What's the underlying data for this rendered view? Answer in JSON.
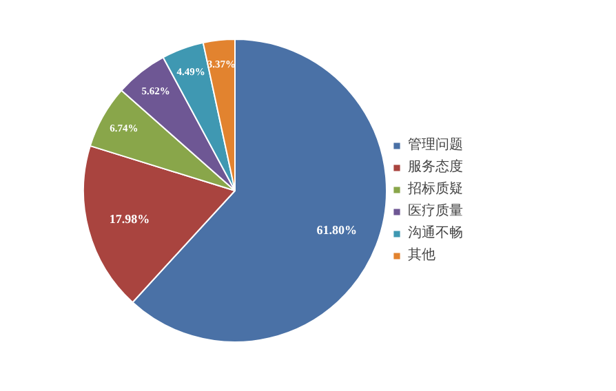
{
  "chart_data": {
    "type": "pie",
    "categories": [
      "管理问题",
      "服务态度",
      "招标质疑",
      "医疗质量",
      "沟通不畅",
      "其他"
    ],
    "values": [
      61.8,
      17.98,
      6.74,
      5.62,
      4.49,
      3.37
    ],
    "colors": [
      "#4a71a6",
      "#a9443f",
      "#89a64a",
      "#6e5794",
      "#3f98b2",
      "#e2832f"
    ],
    "value_labels": [
      "61.80%",
      "17.98%",
      "6.74%",
      "5.62%",
      "4.49%",
      "3.37%"
    ],
    "legend": "right"
  }
}
